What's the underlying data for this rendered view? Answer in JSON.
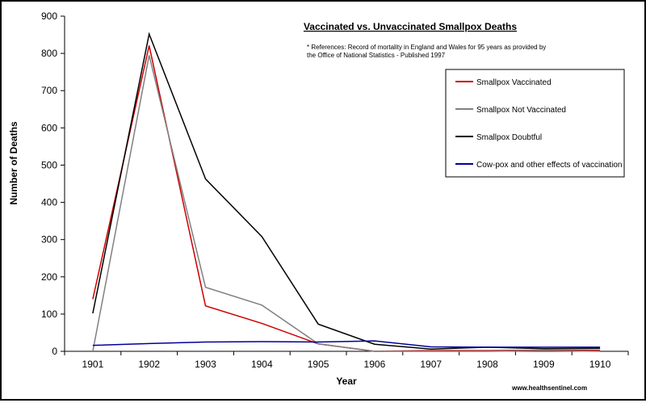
{
  "chart_data": {
    "type": "line",
    "title": "Vaccinated vs. Unvaccinated Smallpox Deaths",
    "note_lines": [
      "* References: Record of mortality in England and Wales for 95 years as provided by",
      "the Office of National Statistics - Published 1997"
    ],
    "xlabel": "Year",
    "ylabel": "Number of Deaths",
    "source": "www.healthsentinel.com",
    "categories": [
      "1901",
      "1902",
      "1903",
      "1904",
      "1905",
      "1906",
      "1907",
      "1908",
      "1909",
      "1910"
    ],
    "ylim": [
      0,
      900
    ],
    "yticks": [
      0,
      100,
      200,
      300,
      400,
      500,
      600,
      700,
      800,
      900
    ],
    "grid": false,
    "legend_position": "right",
    "series": [
      {
        "name": "Smallpox Vaccinated",
        "color": "#cc0000",
        "values": [
          140,
          821,
          122,
          75,
          20,
          0,
          2,
          2,
          3,
          3
        ]
      },
      {
        "name": "Smallpox Not Vaccinated",
        "color": "#808080",
        "values": [
          0,
          795,
          172,
          124,
          20,
          0,
          0,
          0,
          2,
          0
        ]
      },
      {
        "name": "Smallpox Doubtful",
        "color": "#000000",
        "values": [
          102,
          852,
          463,
          308,
          73,
          19,
          6,
          11,
          7,
          8
        ]
      },
      {
        "name": "Cow-pox and other effects of vaccination",
        "color": "#000099",
        "values": [
          16,
          21,
          25,
          26,
          25,
          28,
          12,
          11,
          11,
          11
        ]
      }
    ]
  }
}
